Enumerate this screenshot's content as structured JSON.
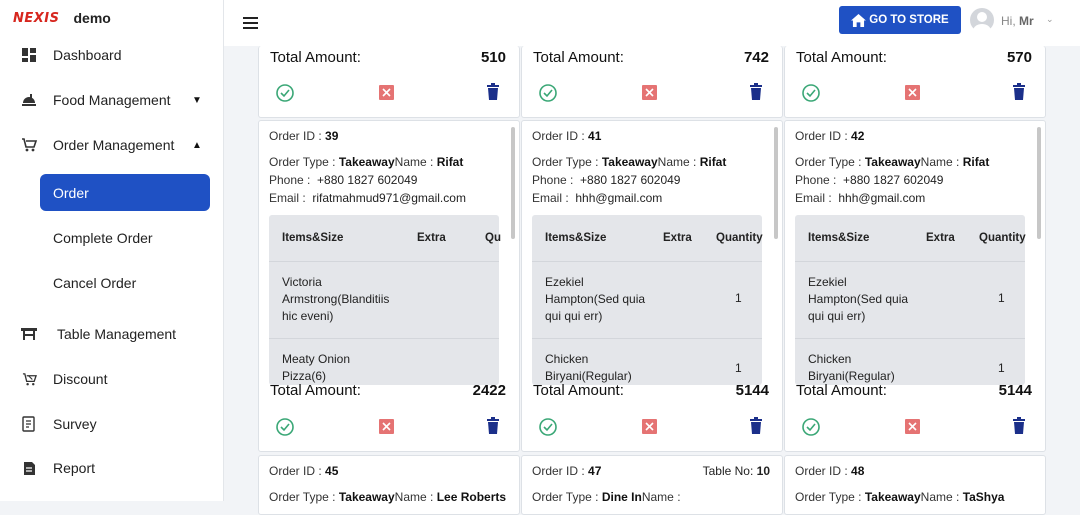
{
  "brand": {
    "logo": "NEXIS",
    "name": "demo"
  },
  "sidebar": {
    "items": [
      {
        "label": "Dashboard",
        "icon": "dashboard-icon"
      },
      {
        "label": "Food Management",
        "icon": "food-icon"
      },
      {
        "label": "Order Management",
        "icon": "cart-icon"
      },
      {
        "label": "Table Management",
        "icon": "table-icon"
      },
      {
        "label": "Discount",
        "icon": "discount-icon"
      },
      {
        "label": "Survey",
        "icon": "survey-icon"
      },
      {
        "label": "Report",
        "icon": "report-icon"
      }
    ],
    "sub_items": [
      "Order",
      "Complete Order",
      "Cancel Order"
    ]
  },
  "header": {
    "store_button": "GO TO STORE",
    "greeting": "Hi,",
    "user": "Mr"
  },
  "labels": {
    "total": "Total Amount:",
    "order_id": "Order ID :",
    "order_type": "Order Type :",
    "name": "Name :",
    "phone": "Phone :",
    "email": "Email :",
    "table_no": "Table No:",
    "col_items": "Items&Size",
    "col_extra": "Extra",
    "col_qty": "Quantity",
    "col_qty_cut": "Qu"
  },
  "top_cards": [
    {
      "total": "510"
    },
    {
      "total": "742"
    },
    {
      "total": "570"
    }
  ],
  "order_cards": [
    {
      "id": "39",
      "type": "Takeaway",
      "name": "Rifat",
      "phone": "+880 1827 602049",
      "email": "rifatmahmud971@gmail.com",
      "items": [
        {
          "name": "Victoria Armstrong(Blanditiis hic eveni)",
          "qty": ""
        },
        {
          "name": "Meaty Onion Pizza(6)",
          "qty": ""
        }
      ],
      "total": "2422"
    },
    {
      "id": "41",
      "type": "Takeaway",
      "name": "Rifat",
      "phone": "+880 1827 602049",
      "email": "hhh@gmail.com",
      "items": [
        {
          "name": "Ezekiel Hampton(Sed quia qui qui err)",
          "qty": "1"
        },
        {
          "name": "Chicken Biryani(Regular)",
          "qty": "1"
        }
      ],
      "total": "5144"
    },
    {
      "id": "42",
      "type": "Takeaway",
      "name": "Rifat",
      "phone": "+880 1827 602049",
      "email": "hhh@gmail.com",
      "items": [
        {
          "name": "Ezekiel Hampton(Sed quia qui qui err)",
          "qty": "1"
        },
        {
          "name": "Chicken Biryani(Regular)",
          "qty": "1"
        }
      ],
      "total": "5144"
    }
  ],
  "bottom_cards": [
    {
      "id": "45",
      "type": "Takeaway",
      "name": "Lee Roberts",
      "table": ""
    },
    {
      "id": "47",
      "type": "Dine In",
      "name": "",
      "table": "10"
    },
    {
      "id": "48",
      "type": "Takeaway",
      "name": "TaShya",
      "table": ""
    }
  ]
}
